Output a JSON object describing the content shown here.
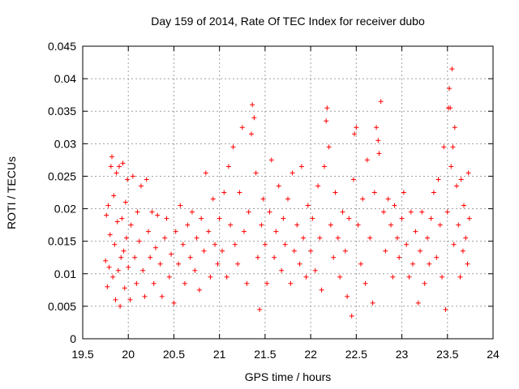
{
  "chart_data": {
    "type": "scatter",
    "title": "Day 159 of 2014, Rate Of TEC Index for receiver dubo",
    "xlabel": "GPS time / hours",
    "ylabel": "ROTI / TECUs",
    "xlim": [
      19.5,
      24
    ],
    "ylim": [
      0,
      0.045
    ],
    "xticks": [
      19.5,
      20,
      20.5,
      21,
      21.5,
      22,
      22.5,
      23,
      23.5,
      24
    ],
    "xtick_labels": [
      "19.5",
      "20",
      "20.5",
      "21",
      "21.5",
      "22",
      "22.5",
      "23",
      "23.5",
      "24"
    ],
    "yticks": [
      0,
      0.005,
      0.01,
      0.015,
      0.02,
      0.025,
      0.03,
      0.035,
      0.04,
      0.045
    ],
    "ytick_labels": [
      "0",
      "0.005",
      "0.01",
      "0.015",
      "0.02",
      "0.025",
      "0.03",
      "0.035",
      "0.04",
      "0.045"
    ],
    "grid": true,
    "marker": "+",
    "marker_color": "#ff0000",
    "series": [
      {
        "name": "ROTI",
        "points": [
          [
            19.75,
            0.012
          ],
          [
            19.76,
            0.019
          ],
          [
            19.77,
            0.008
          ],
          [
            19.78,
            0.0205
          ],
          [
            19.79,
            0.011
          ],
          [
            19.8,
            0.016
          ],
          [
            19.81,
            0.0265
          ],
          [
            19.82,
            0.028
          ],
          [
            19.83,
            0.0095
          ],
          [
            19.84,
            0.022
          ],
          [
            19.85,
            0.0145
          ],
          [
            19.86,
            0.006
          ],
          [
            19.87,
            0.0255
          ],
          [
            19.88,
            0.018
          ],
          [
            19.89,
            0.0105
          ],
          [
            19.9,
            0.0265
          ],
          [
            19.91,
            0.005
          ],
          [
            19.92,
            0.0125
          ],
          [
            19.93,
            0.0185
          ],
          [
            19.94,
            0.027
          ],
          [
            19.95,
            0.0135
          ],
          [
            19.96,
            0.0078
          ],
          [
            19.97,
            0.021
          ],
          [
            19.98,
            0.0155
          ],
          [
            19.99,
            0.0245
          ],
          [
            20.0,
            0.011
          ],
          [
            20.02,
            0.006
          ],
          [
            20.03,
            0.0175
          ],
          [
            20.05,
            0.025
          ],
          [
            20.07,
            0.0125
          ],
          [
            20.09,
            0.0085
          ],
          [
            20.1,
            0.0195
          ],
          [
            20.12,
            0.015
          ],
          [
            20.14,
            0.0235
          ],
          [
            20.16,
            0.0105
          ],
          [
            20.18,
            0.0065
          ],
          [
            20.2,
            0.0245
          ],
          [
            20.22,
            0.0165
          ],
          [
            20.24,
            0.0125
          ],
          [
            20.26,
            0.0195
          ],
          [
            20.28,
            0.0085
          ],
          [
            20.3,
            0.014
          ],
          [
            20.32,
            0.019
          ],
          [
            20.35,
            0.0115
          ],
          [
            20.37,
            0.0065
          ],
          [
            20.4,
            0.0155
          ],
          [
            20.42,
            0.0185
          ],
          [
            20.45,
            0.0095
          ],
          [
            20.47,
            0.013
          ],
          [
            20.5,
            0.0055
          ],
          [
            20.52,
            0.0165
          ],
          [
            20.55,
            0.0115
          ],
          [
            20.57,
            0.0205
          ],
          [
            20.6,
            0.0145
          ],
          [
            20.62,
            0.0085
          ],
          [
            20.65,
            0.0175
          ],
          [
            20.68,
            0.0125
          ],
          [
            20.7,
            0.0195
          ],
          [
            20.73,
            0.0105
          ],
          [
            20.75,
            0.0155
          ],
          [
            20.78,
            0.0075
          ],
          [
            20.8,
            0.0185
          ],
          [
            20.83,
            0.0135
          ],
          [
            20.85,
            0.0255
          ],
          [
            20.88,
            0.0165
          ],
          [
            20.9,
            0.0095
          ],
          [
            20.93,
            0.0215
          ],
          [
            20.95,
            0.0145
          ],
          [
            20.98,
            0.0115
          ],
          [
            21.0,
            0.0185
          ],
          [
            21.03,
            0.0135
          ],
          [
            21.05,
            0.0225
          ],
          [
            21.08,
            0.0095
          ],
          [
            21.1,
            0.0265
          ],
          [
            21.12,
            0.0175
          ],
          [
            21.15,
            0.0295
          ],
          [
            21.17,
            0.0145
          ],
          [
            21.2,
            0.0115
          ],
          [
            21.22,
            0.0225
          ],
          [
            21.25,
            0.0325
          ],
          [
            21.27,
            0.0165
          ],
          [
            21.3,
            0.0085
          ],
          [
            21.32,
            0.0195
          ],
          [
            21.35,
            0.0315
          ],
          [
            21.36,
            0.036
          ],
          [
            21.38,
            0.034
          ],
          [
            21.4,
            0.0255
          ],
          [
            21.42,
            0.0125
          ],
          [
            21.44,
            0.0045
          ],
          [
            21.46,
            0.0175
          ],
          [
            21.48,
            0.0215
          ],
          [
            21.5,
            0.0145
          ],
          [
            21.52,
            0.0085
          ],
          [
            21.55,
            0.0195
          ],
          [
            21.57,
            0.0275
          ],
          [
            21.6,
            0.0125
          ],
          [
            21.62,
            0.0165
          ],
          [
            21.65,
            0.0235
          ],
          [
            21.68,
            0.0105
          ],
          [
            21.7,
            0.0185
          ],
          [
            21.72,
            0.0145
          ],
          [
            21.75,
            0.0215
          ],
          [
            21.78,
            0.0085
          ],
          [
            21.8,
            0.0255
          ],
          [
            21.82,
            0.0135
          ],
          [
            21.85,
            0.0175
          ],
          [
            21.88,
            0.0115
          ],
          [
            21.9,
            0.0265
          ],
          [
            21.92,
            0.0155
          ],
          [
            21.95,
            0.0095
          ],
          [
            21.97,
            0.0205
          ],
          [
            22.0,
            0.0135
          ],
          [
            22.02,
            0.0185
          ],
          [
            22.05,
            0.0105
          ],
          [
            22.08,
            0.0235
          ],
          [
            22.1,
            0.0155
          ],
          [
            22.12,
            0.0075
          ],
          [
            22.15,
            0.0265
          ],
          [
            22.17,
            0.0335
          ],
          [
            22.18,
            0.0355
          ],
          [
            22.2,
            0.0295
          ],
          [
            22.22,
            0.0175
          ],
          [
            22.25,
            0.0125
          ],
          [
            22.27,
            0.0225
          ],
          [
            22.3,
            0.0155
          ],
          [
            22.32,
            0.0095
          ],
          [
            22.35,
            0.0195
          ],
          [
            22.38,
            0.0135
          ],
          [
            22.4,
            0.0065
          ],
          [
            22.42,
            0.0185
          ],
          [
            22.45,
            0.0035
          ],
          [
            22.47,
            0.0245
          ],
          [
            22.48,
            0.0315
          ],
          [
            22.5,
            0.0325
          ],
          [
            22.52,
            0.0175
          ],
          [
            22.55,
            0.0115
          ],
          [
            22.57,
            0.0215
          ],
          [
            22.6,
            0.0085
          ],
          [
            22.62,
            0.0275
          ],
          [
            22.65,
            0.0155
          ],
          [
            22.68,
            0.0055
          ],
          [
            22.7,
            0.0225
          ],
          [
            22.72,
            0.0325
          ],
          [
            22.74,
            0.0305
          ],
          [
            22.75,
            0.0285
          ],
          [
            22.77,
            0.0365
          ],
          [
            22.8,
            0.0195
          ],
          [
            22.82,
            0.0135
          ],
          [
            22.85,
            0.0215
          ],
          [
            22.88,
            0.0175
          ],
          [
            22.9,
            0.0095
          ],
          [
            22.92,
            0.0205
          ],
          [
            22.95,
            0.0155
          ],
          [
            22.97,
            0.0125
          ],
          [
            23.0,
            0.0185
          ],
          [
            23.02,
            0.0225
          ],
          [
            23.05,
            0.0145
          ],
          [
            23.08,
            0.0095
          ],
          [
            23.1,
            0.0195
          ],
          [
            23.12,
            0.0115
          ],
          [
            23.15,
            0.0165
          ],
          [
            23.18,
            0.0055
          ],
          [
            23.2,
            0.0135
          ],
          [
            23.22,
            0.0195
          ],
          [
            23.25,
            0.0085
          ],
          [
            23.28,
            0.0155
          ],
          [
            23.3,
            0.0115
          ],
          [
            23.32,
            0.0185
          ],
          [
            23.35,
            0.0225
          ],
          [
            23.38,
            0.0125
          ],
          [
            23.4,
            0.0245
          ],
          [
            23.42,
            0.0175
          ],
          [
            23.44,
            0.0095
          ],
          [
            23.46,
            0.0295
          ],
          [
            23.48,
            0.0045
          ],
          [
            23.5,
            0.0195
          ],
          [
            23.51,
            0.0355
          ],
          [
            23.52,
            0.0385
          ],
          [
            23.53,
            0.0355
          ],
          [
            23.54,
            0.0265
          ],
          [
            23.55,
            0.0415
          ],
          [
            23.56,
            0.0295
          ],
          [
            23.57,
            0.0145
          ],
          [
            23.58,
            0.0325
          ],
          [
            23.6,
            0.0235
          ],
          [
            23.62,
            0.0175
          ],
          [
            23.64,
            0.0095
          ],
          [
            23.65,
            0.0245
          ],
          [
            23.67,
            0.0135
          ],
          [
            23.68,
            0.0205
          ],
          [
            23.7,
            0.0155
          ],
          [
            23.72,
            0.0115
          ],
          [
            23.73,
            0.0255
          ],
          [
            23.74,
            0.0185
          ]
        ]
      }
    ]
  }
}
